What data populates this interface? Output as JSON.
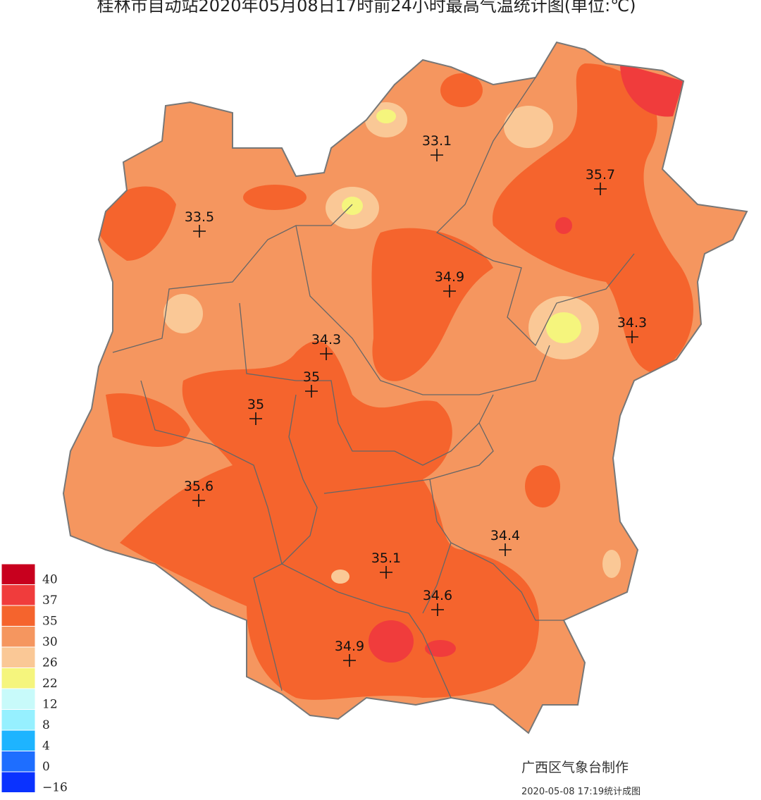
{
  "header": {
    "title": "桂林市自动站2020年05月08日17时前24小时最高气温统计图(单位:℃)"
  },
  "stations": [
    {
      "value": 33.1
    },
    {
      "value": 35.7
    },
    {
      "value": 33.5
    },
    {
      "value": 34.9
    },
    {
      "value": 34.3
    },
    {
      "value": 34.3
    },
    {
      "value": 35
    },
    {
      "value": 35
    },
    {
      "value": 35.6
    },
    {
      "value": 34.4
    },
    {
      "value": 35.1
    },
    {
      "value": 34.6
    },
    {
      "value": 34.9
    }
  ],
  "legend": {
    "items": [
      {
        "label": "40",
        "color": "#c8001e"
      },
      {
        "label": "37",
        "color": "#f03c3c"
      },
      {
        "label": "35",
        "color": "#f5642d"
      },
      {
        "label": "30",
        "color": "#f5965f"
      },
      {
        "label": "26",
        "color": "#fac896"
      },
      {
        "label": "22",
        "color": "#f5f57d"
      },
      {
        "label": "12",
        "color": "#c8fafa"
      },
      {
        "label": "8",
        "color": "#96f0ff"
      },
      {
        "label": "4",
        "color": "#1eb4ff"
      },
      {
        "label": "0",
        "color": "#1e6eff"
      },
      {
        "label": "−16",
        "color": "#0a32ff"
      }
    ]
  },
  "footer": {
    "producer": "广西区气象台制作",
    "timestamp": "2020-05-08 17:19统计成图"
  }
}
